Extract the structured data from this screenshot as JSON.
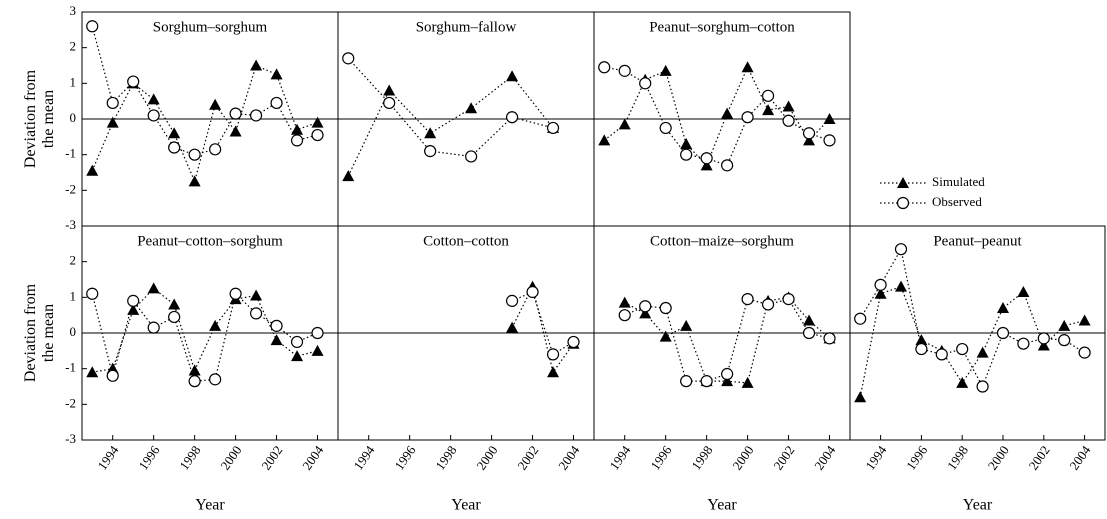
{
  "chart_data": [
    {
      "type": "line",
      "title": "Sorghum–sorghum",
      "ylabel": "Deviation from\nthe mean",
      "x": [
        1993,
        1994,
        1995,
        1996,
        1997,
        1998,
        1999,
        2000,
        2001,
        2002,
        2003,
        2004
      ],
      "xlim": [
        1992.5,
        2005
      ],
      "ylim": [
        -3,
        3
      ],
      "yticks": [
        -3,
        -2,
        -1,
        0,
        1,
        2,
        3
      ],
      "series": [
        {
          "name": "Simulated",
          "color": "#000000",
          "marker": "triangle",
          "values": [
            -1.45,
            -0.1,
            1.0,
            0.55,
            -0.4,
            -1.75,
            0.4,
            -0.35,
            1.5,
            1.25,
            -0.3,
            -0.1
          ]
        },
        {
          "name": "Observed",
          "color": "#000000",
          "marker": "circle",
          "values": [
            2.6,
            0.45,
            1.05,
            0.1,
            -0.8,
            -1.0,
            -0.85,
            0.15,
            0.1,
            0.45,
            -0.6,
            -0.45
          ]
        }
      ]
    },
    {
      "type": "line",
      "title": "Sorghum–fallow",
      "x": [
        1993,
        1995,
        1997,
        1999,
        2001,
        2003
      ],
      "xlim": [
        1992.5,
        2005
      ],
      "ylim": [
        -3,
        3
      ],
      "series": [
        {
          "name": "Simulated",
          "color": "#000000",
          "marker": "triangle",
          "values": [
            -1.6,
            0.8,
            -0.4,
            0.3,
            1.2,
            -0.25
          ]
        },
        {
          "name": "Observed",
          "color": "#000000",
          "marker": "circle",
          "values": [
            1.7,
            0.45,
            -0.9,
            -1.05,
            0.05,
            -0.25
          ]
        }
      ]
    },
    {
      "type": "line",
      "title": "Peanut–sorghum–cotton",
      "x": [
        1993,
        1994,
        1995,
        1996,
        1997,
        1998,
        1999,
        2000,
        2001,
        2002,
        2003,
        2004
      ],
      "xlim": [
        1992.5,
        2005
      ],
      "ylim": [
        -3,
        3
      ],
      "series": [
        {
          "name": "Simulated",
          "color": "#000000",
          "marker": "triangle",
          "values": [
            -0.6,
            -0.15,
            1.1,
            1.35,
            -0.7,
            -1.3,
            0.15,
            1.45,
            0.25,
            0.35,
            -0.6,
            0.0
          ]
        },
        {
          "name": "Observed",
          "color": "#000000",
          "marker": "circle",
          "values": [
            1.45,
            1.35,
            1.0,
            -0.25,
            -1.0,
            -1.1,
            -1.3,
            0.05,
            0.65,
            -0.05,
            -0.4,
            -0.6
          ]
        }
      ]
    },
    {
      "type": "line",
      "title": "Peanut–cotton–sorghum",
      "ylabel": "Deviation from\nthe mean",
      "xlabel": "Year",
      "x": [
        1993,
        1994,
        1995,
        1996,
        1997,
        1998,
        1999,
        2000,
        2001,
        2002,
        2003,
        2004
      ],
      "xlim": [
        1992.5,
        2005
      ],
      "xticks": [
        1994,
        1996,
        1998,
        2000,
        2002,
        2004
      ],
      "ylim": [
        -3,
        3
      ],
      "yticks": [
        -3,
        -2,
        -1,
        0,
        1,
        2
      ],
      "series": [
        {
          "name": "Simulated",
          "color": "#000000",
          "marker": "triangle",
          "values": [
            -1.1,
            -1.0,
            0.65,
            1.25,
            0.8,
            -1.05,
            0.2,
            0.95,
            1.05,
            -0.2,
            -0.65,
            -0.5
          ]
        },
        {
          "name": "Observed",
          "color": "#000000",
          "marker": "circle",
          "values": [
            1.1,
            -1.2,
            0.9,
            0.15,
            0.45,
            -1.35,
            -1.3,
            1.1,
            0.55,
            0.2,
            -0.25,
            0.0
          ]
        }
      ]
    },
    {
      "type": "line",
      "title": "Cotton–cotton",
      "xlabel": "Year",
      "x": [
        2001,
        2002,
        2003,
        2004
      ],
      "xlim": [
        1992.5,
        2005
      ],
      "xticks": [
        1994,
        1996,
        1998,
        2000,
        2002,
        2004
      ],
      "ylim": [
        -3,
        3
      ],
      "series": [
        {
          "name": "Simulated",
          "color": "#000000",
          "marker": "triangle",
          "values": [
            0.15,
            1.3,
            -1.1,
            -0.3
          ]
        },
        {
          "name": "Observed",
          "color": "#000000",
          "marker": "circle",
          "values": [
            0.9,
            1.15,
            -0.6,
            -0.25
          ]
        }
      ]
    },
    {
      "type": "line",
      "title": "Cotton–maize–sorghum",
      "xlabel": "Year",
      "x": [
        1994,
        1995,
        1996,
        1997,
        1998,
        1999,
        2000,
        2001,
        2002,
        2003,
        2004
      ],
      "xlim": [
        1992.5,
        2005
      ],
      "xticks": [
        1994,
        1996,
        1998,
        2000,
        2002,
        2004
      ],
      "ylim": [
        -3,
        3
      ],
      "series": [
        {
          "name": "Simulated",
          "color": "#000000",
          "marker": "triangle",
          "values": [
            0.85,
            0.55,
            -0.1,
            0.2,
            -1.35,
            -1.35,
            -1.4,
            0.9,
            1.0,
            0.35,
            -0.15
          ]
        },
        {
          "name": "Observed",
          "color": "#000000",
          "marker": "circle",
          "values": [
            0.5,
            0.75,
            0.7,
            -1.35,
            -1.35,
            -1.15,
            0.95,
            0.8,
            0.95,
            0.0,
            -0.15
          ]
        }
      ]
    },
    {
      "type": "line",
      "title": "Peanut–peanut",
      "xlabel": "Year",
      "x": [
        1993,
        1994,
        1995,
        1996,
        1997,
        1998,
        1999,
        2000,
        2001,
        2002,
        2003,
        2004
      ],
      "xlim": [
        1992.5,
        2005
      ],
      "xticks": [
        1994,
        1996,
        1998,
        2000,
        2002,
        2004
      ],
      "ylim": [
        -3,
        3
      ],
      "series": [
        {
          "name": "Simulated",
          "color": "#000000",
          "marker": "triangle",
          "values": [
            -1.8,
            1.1,
            1.3,
            -0.2,
            -0.5,
            -1.4,
            -0.55,
            0.7,
            1.15,
            -0.35,
            0.2,
            0.35
          ]
        },
        {
          "name": "Observed",
          "color": "#000000",
          "marker": "circle",
          "values": [
            0.4,
            1.35,
            2.35,
            -0.45,
            -0.6,
            -0.45,
            -1.5,
            0.0,
            -0.3,
            -0.15,
            -0.2,
            -0.55
          ]
        }
      ]
    }
  ]
}
